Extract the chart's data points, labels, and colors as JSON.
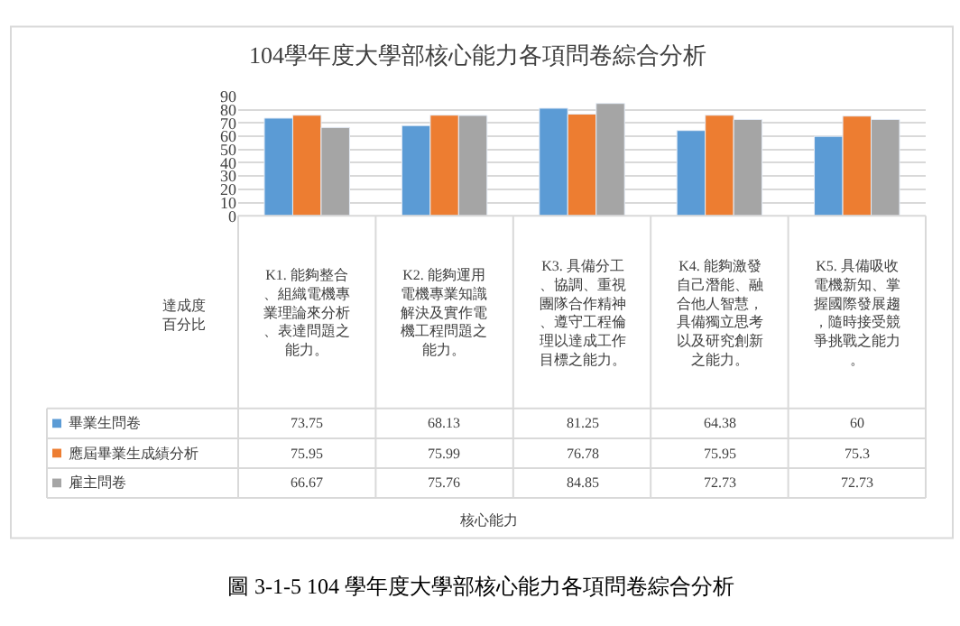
{
  "chart_data": {
    "type": "bar",
    "title": "104學年度大學部核心能力各項問卷綜合分析",
    "categories": [
      "K1. 能夠整合、組織電機專業理論來分析、表達問題之能力。",
      "K2. 能夠運用電機專業知識解決及實作電機工程問題之能力。",
      "K3. 具備分工、協調、重視團隊合作精神、遵守工程倫理以達成工作目標之能力。",
      "K4. 能夠激發自己潛能、融合他人智慧，具備獨立思考以及研究創新之能力。",
      "K5. 具備吸收電機新知、掌握國際發展趨，隨時接受競爭挑戰之能力。"
    ],
    "series": [
      {
        "name": "畢業生問卷",
        "color": "#5b9bd5",
        "values": [
          73.75,
          68.13,
          81.25,
          64.38,
          60
        ]
      },
      {
        "name": "應屆畢業生成績分析",
        "color": "#ed7d31",
        "values": [
          75.95,
          75.99,
          76.78,
          75.95,
          75.3
        ]
      },
      {
        "name": "雇主問卷",
        "color": "#a5a5a5",
        "values": [
          66.67,
          75.76,
          84.85,
          72.73,
          72.73
        ]
      }
    ],
    "ylabel": "達成度百分比",
    "ylim": [
      0,
      90
    ],
    "yticks": [
      0,
      10,
      20,
      30,
      40,
      50,
      60,
      70,
      80,
      90
    ],
    "grid": "y",
    "legend": "bottom",
    "data_labels": true,
    "annotations": [
      "核心能力",
      "圖 3-1-5 104 學年度大學部核心能力各項問卷綜合分析"
    ]
  }
}
